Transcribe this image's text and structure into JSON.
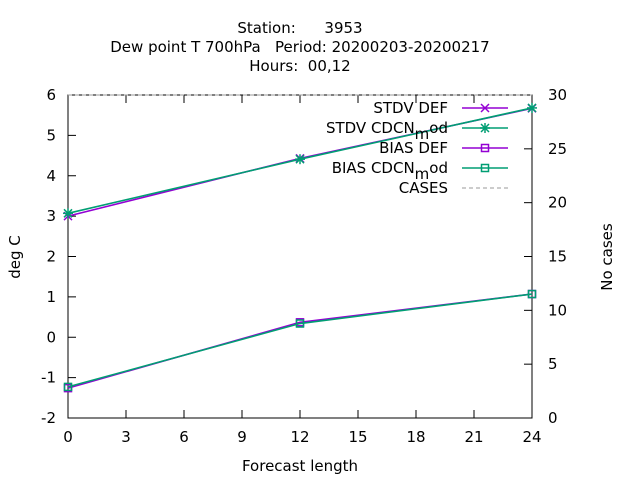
{
  "chart_data": {
    "type": "line",
    "title_lines": [
      "Station:      3953",
      "Dew point T 700hPa   Period: 20200203-20200217",
      "Hours:  00,12"
    ],
    "xlabel": "Forecast length",
    "ylabel": "deg C",
    "y2label": "No cases",
    "xlim": [
      0,
      24
    ],
    "ylim": [
      -2,
      6
    ],
    "y2lim": [
      0,
      30
    ],
    "x_ticks": [
      "0",
      "3",
      "6",
      "9",
      "12",
      "15",
      "18",
      "21",
      "24"
    ],
    "y_ticks": [
      "-2",
      "-1",
      "0",
      "1",
      "2",
      "3",
      "4",
      "5",
      "6"
    ],
    "y2_ticks": [
      "0",
      "5",
      "10",
      "15",
      "20",
      "25",
      "30"
    ],
    "legend_position": "top-right",
    "x": [
      0,
      12,
      24
    ],
    "series": [
      {
        "name": "STDV DEF",
        "label_base": "STDV DEF",
        "label_sub": "",
        "label_tail": "",
        "axis": "y",
        "marker": "x",
        "color": "#9400d3",
        "values": [
          3.0,
          4.43,
          5.67
        ]
      },
      {
        "name": "STDV CDCN_mod",
        "label_base": "STDV CDCN",
        "label_sub": "m",
        "label_tail": "od",
        "axis": "y",
        "marker": "asterisk",
        "color": "#009e73",
        "values": [
          3.07,
          4.41,
          5.68
        ]
      },
      {
        "name": "BIAS DEF",
        "label_base": "BIAS DEF",
        "label_sub": "",
        "label_tail": "",
        "axis": "y",
        "marker": "square",
        "color": "#9400d3",
        "values": [
          -1.26,
          0.37,
          1.07
        ]
      },
      {
        "name": "BIAS CDCN_mod",
        "label_base": "BIAS CDCN",
        "label_sub": "m",
        "label_tail": "od",
        "axis": "y",
        "marker": "square",
        "color": "#009e73",
        "values": [
          -1.23,
          0.34,
          1.07
        ]
      },
      {
        "name": "CASES",
        "label_base": "CASES",
        "label_sub": "",
        "label_tail": "",
        "axis": "y2",
        "marker": "none",
        "color": "#999999",
        "dashed": true,
        "values": [
          30,
          30,
          30
        ]
      }
    ]
  }
}
